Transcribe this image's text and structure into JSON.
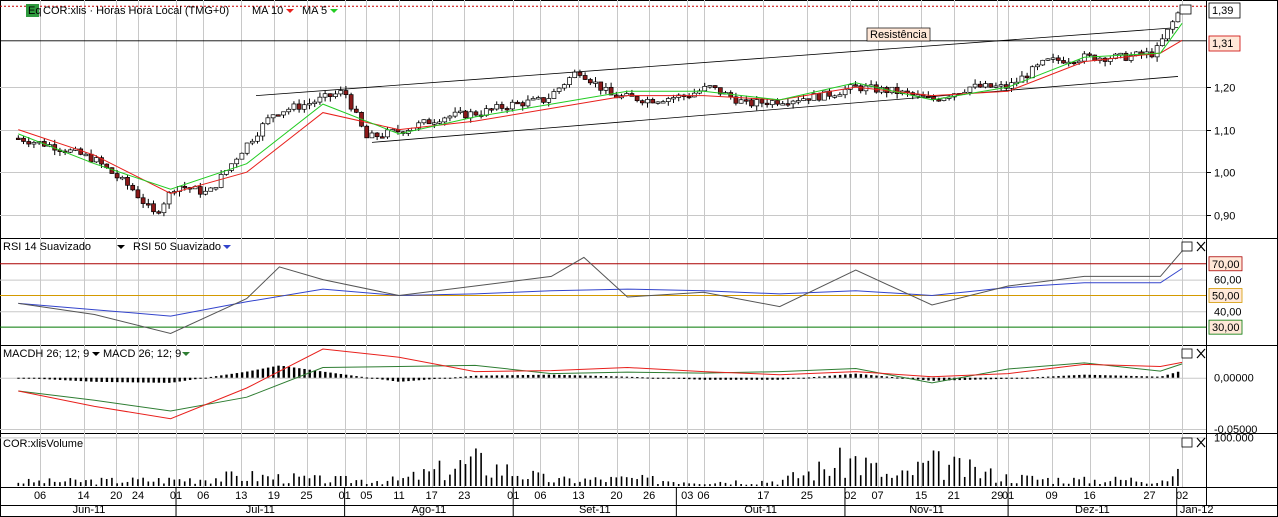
{
  "colors": {
    "up_candle": "#ffffff",
    "down_candle": "#8b1a1a",
    "ma10": "#e8201c",
    "ma5": "#22cc22",
    "rsi14": "#555555",
    "rsi50": "#3344cc",
    "macd_signal": "#2e7d32",
    "macdh_line": "#e8201c",
    "level_70": "#aa0000",
    "level_50": "#d49a00",
    "level_30": "#007700",
    "grid": "#c8c8c8",
    "value_box_border": "#cc0000",
    "value_box_fill": "#ffe8d8"
  },
  "price_panel": {
    "tag": "Eq",
    "title": "COR:xlis · Horas Hora Local (TMG+0)",
    "ma10_label": "MA 10",
    "ma5_label": "MA 5",
    "annotation": "Resistência",
    "current_price_label": "1,39",
    "resistance_level_label": "1,31",
    "y_ticks": [
      "1,20",
      "1,10",
      "1,00",
      "0,90"
    ]
  },
  "rsi_panel": {
    "label_rsi14": "RSI 14 Suavizado",
    "label_rsi50": "RSI 50 Suavizado",
    "level_70_label": "70,00",
    "level_50_label": "50,00",
    "level_30_label": "30,00",
    "y_ticks": [
      "60,00",
      "40,00"
    ]
  },
  "macd_panel": {
    "label_macdh": "MACDH 26; 12; 9",
    "label_macd": "MACD 26; 12; 9",
    "y_ticks": [
      "0,00000",
      "-0,05000"
    ]
  },
  "volume_panel": {
    "label": "COR:xlisVolume",
    "y_ticks": [
      "100.000"
    ]
  },
  "x_axis": {
    "day_labels": [
      "06",
      "14",
      "20",
      "24",
      "01",
      "06",
      "13",
      "19",
      "25",
      "01",
      "05",
      "11",
      "17",
      "23",
      "01",
      "06",
      "13",
      "20",
      "26",
      "03",
      "06",
      "17",
      "25",
      "02",
      "07",
      "15",
      "21",
      "29",
      "01",
      "09",
      "16",
      "27",
      "02"
    ],
    "month_labels": [
      "Jun-11",
      "Jul-11",
      "Ago-11",
      "Set-11",
      "Out-11",
      "Nov-11",
      "Dez-11",
      "Jan-12"
    ]
  },
  "chart_data": {
    "type": "line",
    "title": "COR:xlis · Horas Hora Local (TMG+0)",
    "xlabel": "",
    "ylabel": "",
    "x_range": [
      "Jun-11",
      "Jan-12"
    ],
    "y_range": [
      0.85,
      1.4
    ],
    "grid": true,
    "series": [
      {
        "name": "COR:xlis",
        "kind": "candlestick",
        "x": [
          "2011-06-02",
          "2011-06-09",
          "2011-06-16",
          "2011-06-23",
          "2011-06-27",
          "2011-07-01",
          "2011-07-07",
          "2011-07-13",
          "2011-07-19",
          "2011-07-25",
          "2011-08-01",
          "2011-08-05",
          "2011-08-12",
          "2011-08-19",
          "2011-08-26",
          "2011-09-01",
          "2011-09-07",
          "2011-09-13",
          "2011-09-19",
          "2011-09-26",
          "2011-10-03",
          "2011-10-07",
          "2011-10-14",
          "2011-10-21",
          "2011-10-28",
          "2011-11-03",
          "2011-11-10",
          "2011-11-17",
          "2011-11-24",
          "2011-12-01",
          "2011-12-08",
          "2011-12-15",
          "2011-12-22",
          "2011-12-28",
          "2012-01-02"
        ],
        "close": [
          1.08,
          1.06,
          1.03,
          0.96,
          0.9,
          0.97,
          0.95,
          1.05,
          1.14,
          1.16,
          1.19,
          1.08,
          1.1,
          1.13,
          1.14,
          1.16,
          1.17,
          1.24,
          1.18,
          1.17,
          1.18,
          1.2,
          1.16,
          1.17,
          1.18,
          1.2,
          1.19,
          1.17,
          1.2,
          1.2,
          1.26,
          1.27,
          1.27,
          1.28,
          1.39
        ]
      },
      {
        "name": "MA 10",
        "x": [
          "2011-06-02",
          "2011-06-16",
          "2011-06-30",
          "2011-07-14",
          "2011-07-28",
          "2011-08-11",
          "2011-08-25",
          "2011-09-08",
          "2011-09-22",
          "2011-10-06",
          "2011-10-20",
          "2011-11-03",
          "2011-11-17",
          "2011-12-01",
          "2011-12-15",
          "2011-12-29",
          "2012-01-02"
        ],
        "values": [
          1.1,
          1.04,
          0.95,
          1.0,
          1.14,
          1.1,
          1.12,
          1.15,
          1.18,
          1.18,
          1.17,
          1.2,
          1.18,
          1.19,
          1.26,
          1.28,
          1.31
        ]
      },
      {
        "name": "MA 5",
        "x": [
          "2011-06-02",
          "2011-06-16",
          "2011-06-30",
          "2011-07-14",
          "2011-07-28",
          "2011-08-11",
          "2011-08-25",
          "2011-09-08",
          "2011-09-22",
          "2011-10-06",
          "2011-10-20",
          "2011-11-03",
          "2011-11-17",
          "2011-12-01",
          "2011-12-15",
          "2011-12-29",
          "2012-01-02"
        ],
        "values": [
          1.09,
          1.02,
          0.96,
          1.02,
          1.16,
          1.09,
          1.13,
          1.16,
          1.19,
          1.19,
          1.17,
          1.21,
          1.17,
          1.2,
          1.27,
          1.28,
          1.35
        ]
      },
      {
        "name": "RSI 14 Suavizado",
        "x": [
          "2011-06-02",
          "2011-06-16",
          "2011-06-30",
          "2011-07-14",
          "2011-07-20",
          "2011-07-28",
          "2011-08-11",
          "2011-08-25",
          "2011-09-08",
          "2011-09-14",
          "2011-09-22",
          "2011-10-06",
          "2011-10-20",
          "2011-11-03",
          "2011-11-17",
          "2011-12-01",
          "2011-12-15",
          "2011-12-29",
          "2012-01-02"
        ],
        "values": [
          45,
          38,
          26,
          48,
          68,
          60,
          50,
          56,
          62,
          74,
          49,
          52,
          43,
          66,
          44,
          56,
          62,
          62,
          78
        ]
      },
      {
        "name": "RSI 50 Suavizado",
        "x": [
          "2011-06-02",
          "2011-06-16",
          "2011-06-30",
          "2011-07-14",
          "2011-07-28",
          "2011-08-11",
          "2011-08-25",
          "2011-09-08",
          "2011-09-22",
          "2011-10-06",
          "2011-10-20",
          "2011-11-03",
          "2011-11-17",
          "2011-12-01",
          "2011-12-15",
          "2011-12-29",
          "2012-01-02"
        ],
        "values": [
          45,
          41,
          37,
          46,
          54,
          50,
          51,
          53,
          54,
          53,
          51,
          53,
          50,
          55,
          58,
          58,
          67
        ]
      },
      {
        "name": "MACDH 26; 12; 9",
        "kind": "histogram",
        "x": [
          "2011-06-02",
          "2011-06-16",
          "2011-06-30",
          "2011-07-14",
          "2011-07-20",
          "2011-07-28",
          "2011-08-11",
          "2011-08-25",
          "2011-09-08",
          "2011-09-22",
          "2011-10-06",
          "2011-10-20",
          "2011-11-03",
          "2011-11-17",
          "2011-12-01",
          "2011-12-15",
          "2011-12-29",
          "2012-01-02"
        ],
        "values": [
          0,
          -0.004,
          -0.005,
          0.006,
          0.012,
          0.006,
          -0.004,
          0.002,
          0.003,
          0.001,
          -0.002,
          -0.002,
          0.004,
          -0.003,
          -0.001,
          0.003,
          0.001,
          0.007
        ]
      },
      {
        "name": "MACD 26; 12; 9",
        "x": [
          "2011-06-02",
          "2011-06-16",
          "2011-06-30",
          "2011-07-14",
          "2011-07-28",
          "2011-08-11",
          "2011-08-25",
          "2011-09-08",
          "2011-09-22",
          "2011-10-06",
          "2011-10-20",
          "2011-11-03",
          "2011-11-17",
          "2011-12-01",
          "2011-12-15",
          "2011-12-29",
          "2012-01-02"
        ],
        "values": [
          -0.013,
          -0.028,
          -0.04,
          -0.01,
          0.028,
          0.02,
          0.006,
          0.007,
          0.01,
          0.006,
          0.003,
          0.006,
          0.001,
          0.004,
          0.013,
          0.011,
          0.015
        ]
      },
      {
        "name": "COR:xlisVolume",
        "kind": "volume",
        "x": [
          "2011-06-02",
          "2011-06-16",
          "2011-06-30",
          "2011-07-14",
          "2011-07-20",
          "2011-07-28",
          "2011-08-11",
          "2011-08-25",
          "2011-09-08",
          "2011-09-22",
          "2011-10-06",
          "2011-10-20",
          "2011-11-03",
          "2011-11-10",
          "2011-11-17",
          "2011-12-01",
          "2011-12-15",
          "2011-12-29",
          "2012-01-02"
        ],
        "values": [
          15000,
          18000,
          22000,
          35000,
          30000,
          22000,
          20000,
          85000,
          20000,
          25000,
          16000,
          18000,
          95000,
          25000,
          80000,
          30000,
          20000,
          25000,
          40000
        ]
      }
    ]
  }
}
